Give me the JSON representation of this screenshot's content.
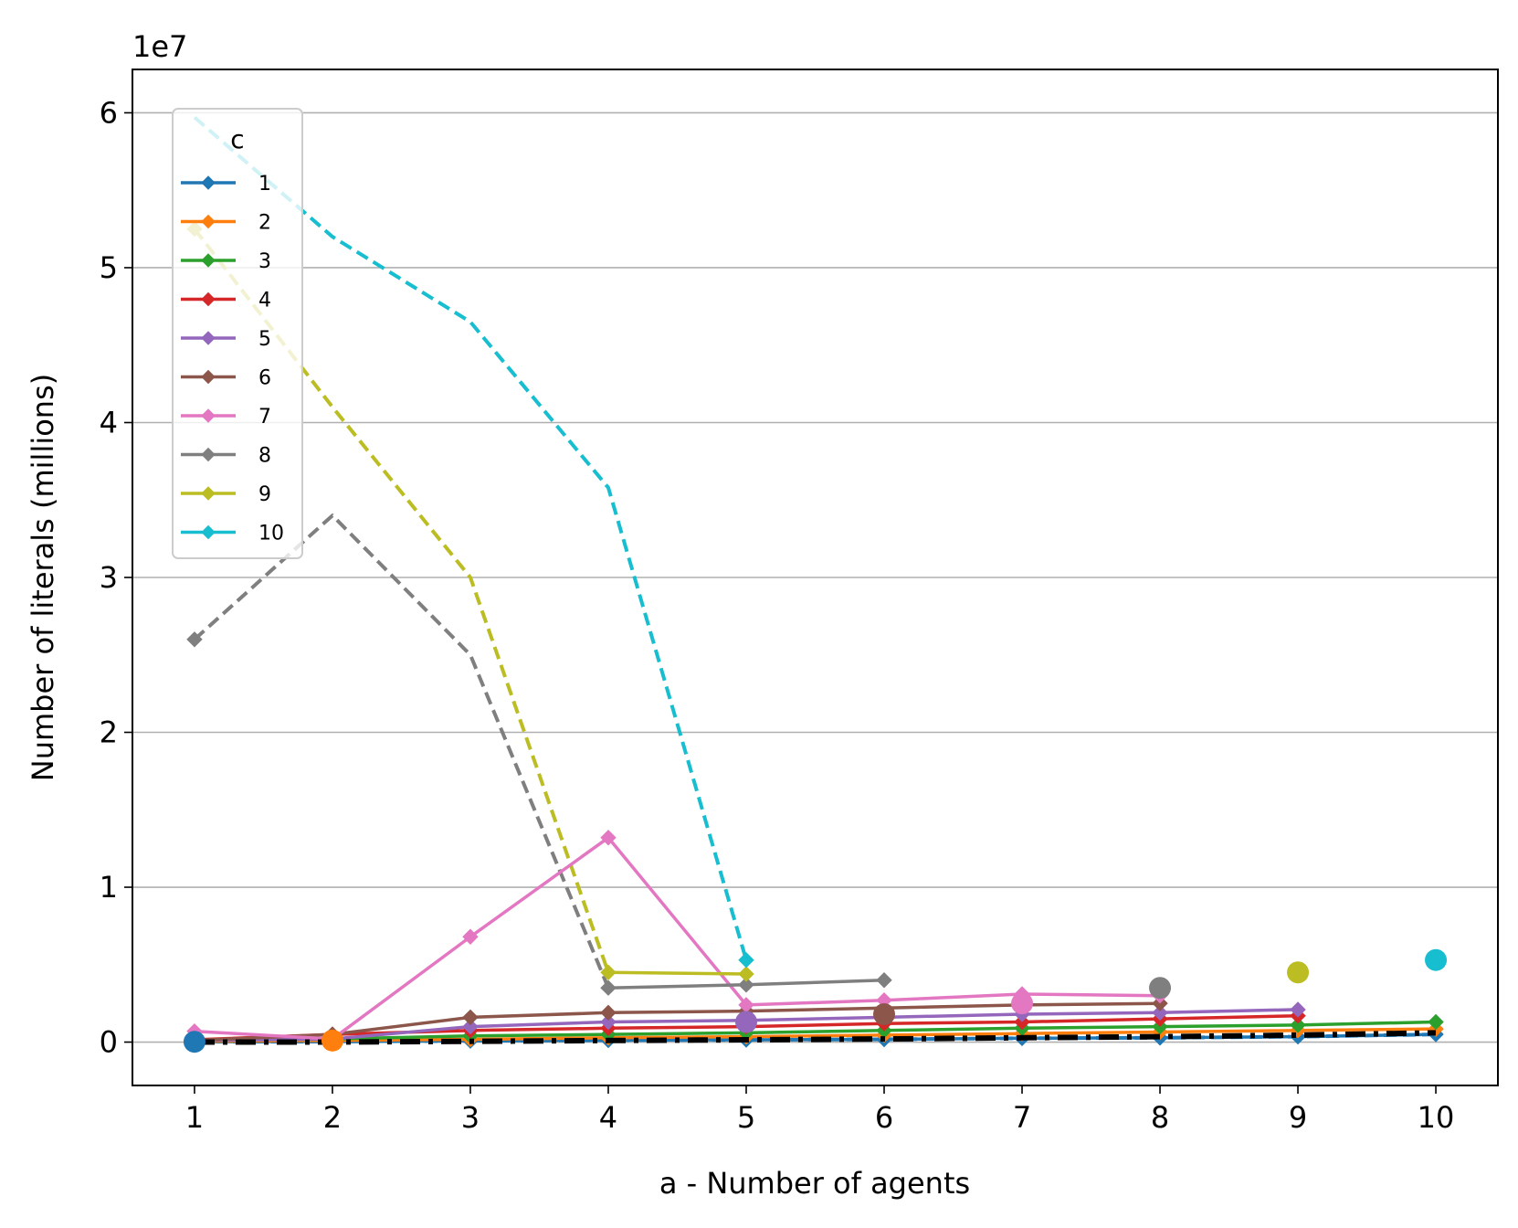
{
  "chart_data": {
    "type": "line",
    "title": "",
    "xlabel": "a - Number of agents",
    "ylabel": "Number of literals (millions)",
    "offset_text": "1e7",
    "xlim": [
      0.55,
      10.45
    ],
    "ylim": [
      -0.28,
      6.28
    ],
    "x_ticks": [
      1,
      2,
      3,
      4,
      5,
      6,
      7,
      8,
      9,
      10
    ],
    "y_ticks": [
      0,
      1,
      2,
      3,
      4,
      5,
      6
    ],
    "grid": "horizontal",
    "legend": {
      "title": "c",
      "placement": "upper-left"
    },
    "series": [
      {
        "name": "1",
        "color": "#1f77b4",
        "x": [
          1,
          2,
          3,
          4,
          5,
          6,
          7,
          8,
          9,
          10
        ],
        "solid": [
          0.002,
          0.004,
          0.008,
          0.012,
          0.015,
          0.018,
          0.025,
          0.028,
          0.035,
          0.05
        ],
        "dashed": [
          0.002,
          0.004,
          0.008,
          0.012,
          0.015,
          0.018,
          0.025,
          0.028,
          0.035,
          0.05
        ],
        "big_marker": {
          "x": 1,
          "y": 0.002
        }
      },
      {
        "name": "2",
        "color": "#ff7f0e",
        "x": [
          1,
          2,
          3,
          4,
          5,
          6,
          7,
          8,
          9,
          10
        ],
        "solid": [
          0.005,
          0.01,
          0.018,
          0.028,
          0.035,
          0.045,
          0.055,
          0.065,
          0.075,
          0.085
        ],
        "dashed": [],
        "big_marker": {
          "x": 2,
          "y": 0.01
        }
      },
      {
        "name": "3",
        "color": "#2ca02c",
        "x": [
          1,
          2,
          3,
          4,
          5,
          6,
          7,
          8,
          9,
          10
        ],
        "solid": [
          0.01,
          0.02,
          0.04,
          0.05,
          0.06,
          0.075,
          0.09,
          0.1,
          0.11,
          0.13
        ],
        "dashed": [],
        "big_marker": null
      },
      {
        "name": "4",
        "color": "#d62728",
        "x": [
          1,
          2,
          3,
          4,
          5,
          6,
          7,
          8,
          9
        ],
        "solid": [
          0.015,
          0.05,
          0.075,
          0.09,
          0.1,
          0.12,
          0.13,
          0.15,
          0.17
        ],
        "dashed": [],
        "big_marker": null
      },
      {
        "name": "5",
        "color": "#9467bd",
        "x": [
          1,
          2,
          3,
          4,
          5,
          6,
          7,
          8,
          9
        ],
        "solid": [
          0.01,
          0.02,
          0.1,
          0.13,
          0.14,
          0.16,
          0.18,
          0.19,
          0.21
        ],
        "dashed": [],
        "big_marker": {
          "x": 5,
          "y": 0.13
        }
      },
      {
        "name": "6",
        "color": "#8c564b",
        "x": [
          1,
          2,
          3,
          4,
          5,
          6,
          7,
          8
        ],
        "solid": [
          0.01,
          0.05,
          0.16,
          0.19,
          0.2,
          0.22,
          0.24,
          0.25
        ],
        "dashed": [],
        "big_marker": {
          "x": 6,
          "y": 0.18
        }
      },
      {
        "name": "7",
        "color": "#e377c2",
        "x": [
          1,
          2,
          3,
          4,
          5,
          6,
          7,
          8
        ],
        "solid": [
          0.07,
          0.02,
          0.68,
          1.32,
          0.24,
          0.27,
          0.31,
          0.3
        ],
        "dashed": [],
        "big_marker": {
          "x": 7,
          "y": 0.25
        }
      },
      {
        "name": "8",
        "color": "#7f7f7f",
        "x": [
          1,
          2,
          3,
          4,
          5,
          6
        ],
        "solid": [
          null,
          null,
          null,
          0.35,
          0.37,
          0.4
        ],
        "dashed": [
          2.6,
          3.4,
          2.5,
          0.35
        ],
        "big_marker": {
          "x": 8,
          "y": 0.35
        }
      },
      {
        "name": "9",
        "color": "#bcbd22",
        "x": [
          1,
          2,
          3,
          4,
          5
        ],
        "solid": [
          null,
          null,
          null,
          0.45,
          0.44
        ],
        "dashed": [
          5.25,
          4.1,
          3.0,
          0.45
        ],
        "big_marker": {
          "x": 9,
          "y": 0.45
        }
      },
      {
        "name": "10",
        "color": "#17becf",
        "x": [
          1,
          2,
          3,
          4,
          5
        ],
        "solid": [],
        "dashed": [
          5.97,
          5.2,
          4.65,
          3.58,
          0.53
        ],
        "end_marker": {
          "x": 5,
          "y": 0.53
        },
        "big_marker": {
          "x": 10,
          "y": 0.53
        }
      }
    ],
    "reference_line": {
      "color": "#000000",
      "style": "dashdot",
      "x": [
        1,
        2,
        3,
        4,
        5,
        6,
        7,
        8,
        9,
        10
      ],
      "y": [
        0.0,
        0.0,
        0.005,
        0.01,
        0.015,
        0.02,
        0.028,
        0.035,
        0.045,
        0.06
      ]
    }
  }
}
